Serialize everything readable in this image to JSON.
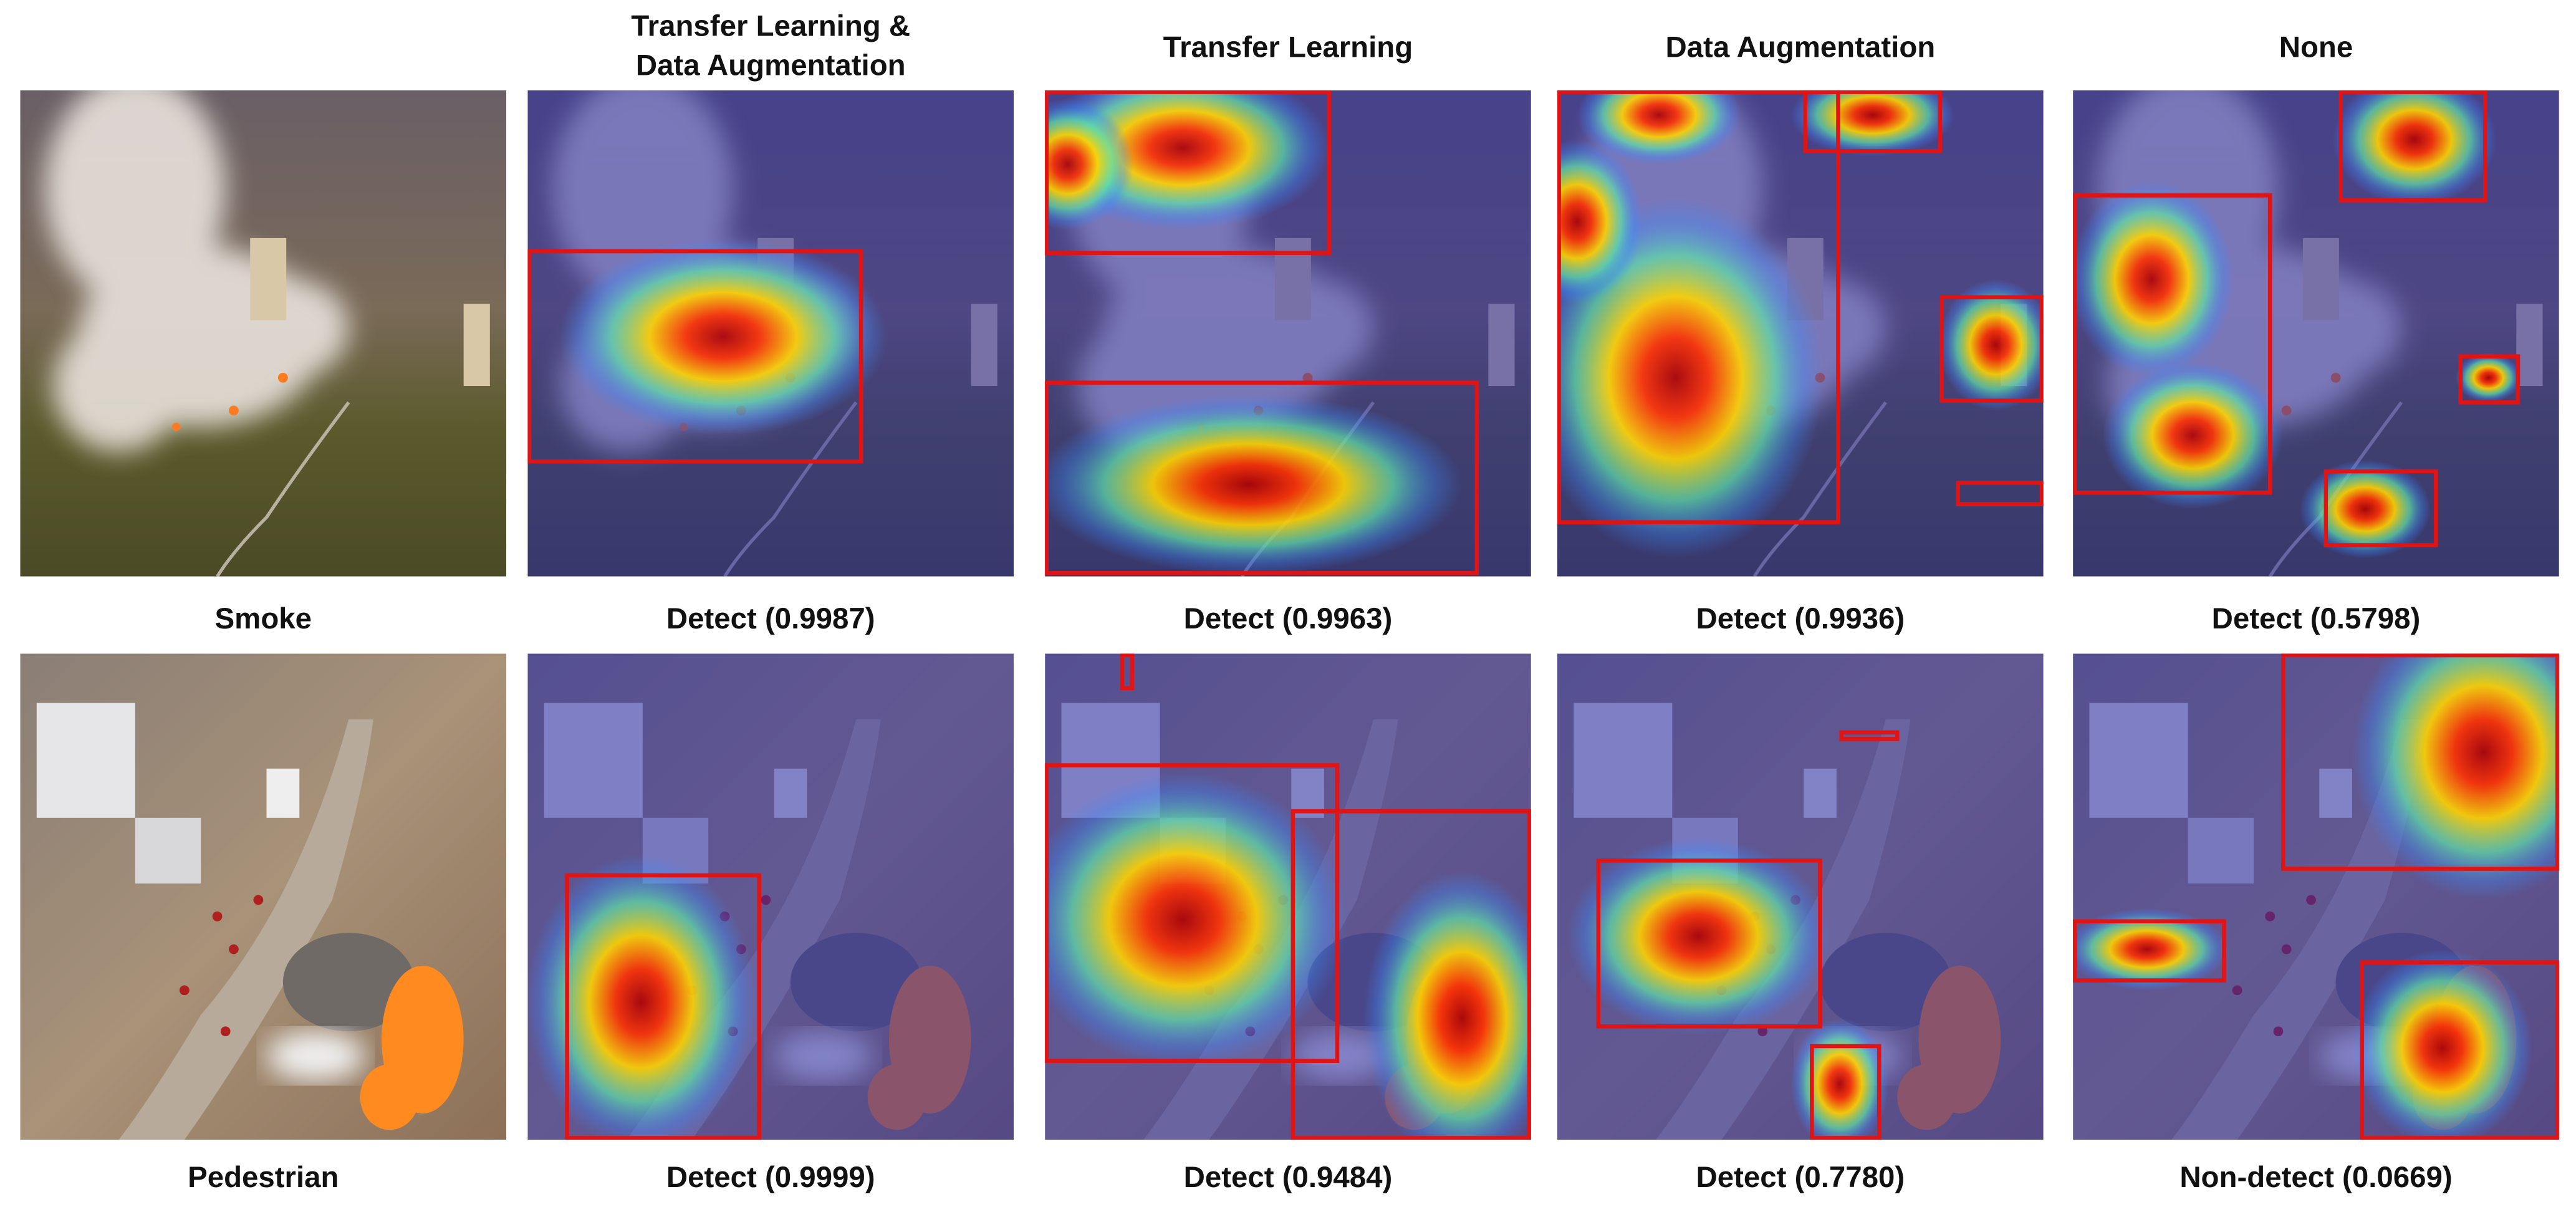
{
  "headers": [
    [
      "Transfer Learning &",
      "Data Augmentation"
    ],
    [
      "Transfer Learning"
    ],
    [
      "Data Augmentation"
    ],
    [
      "None"
    ]
  ],
  "rows": [
    {
      "label": "Smoke",
      "results": [
        "Detect (0.9987)",
        "Detect (0.9963)",
        "Detect (0.9936)",
        "Detect (0.5798)"
      ]
    },
    {
      "label": "Pedestrian",
      "results": [
        "Detect (0.9999)",
        "Detect (0.9484)",
        "Detect (0.7780)",
        "Non-detect (0.0669)"
      ]
    }
  ]
}
